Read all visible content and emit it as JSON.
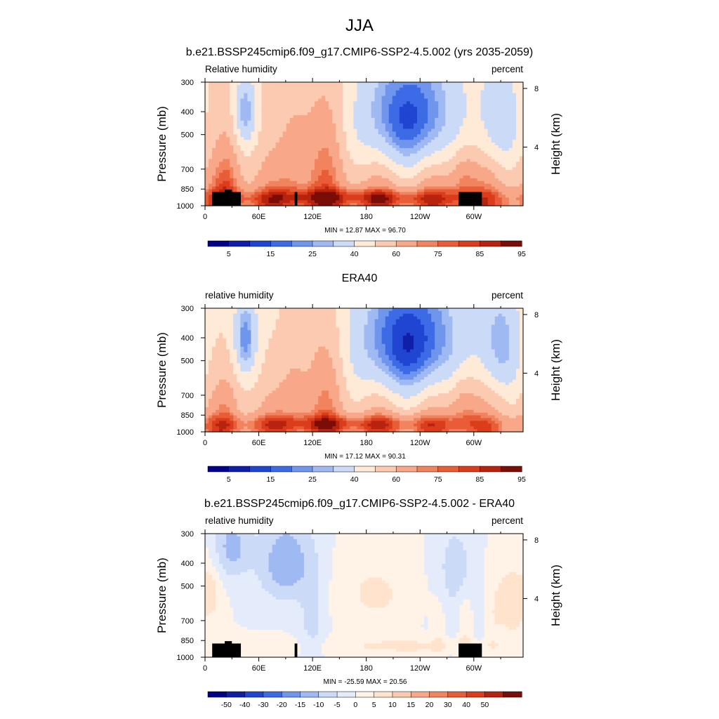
{
  "figure": {
    "title": "JJA"
  },
  "colors": {
    "rh_levels": [
      "#00008b",
      "#0f1fa8",
      "#1f45d1",
      "#3d6be6",
      "#6f95ec",
      "#9fb9f2",
      "#cbdbf7",
      "#ffe9d7",
      "#fbcab0",
      "#f8a889",
      "#f1845f",
      "#e85d38",
      "#da3c1c",
      "#b8230f",
      "#7a0d05"
    ],
    "diff_levels": [
      "#00008b",
      "#0f1fa8",
      "#1f45d1",
      "#3d6be6",
      "#6f95ec",
      "#9fb9f2",
      "#cbdbf7",
      "#e4ecfb",
      "#fff2e6",
      "#ffe3cc",
      "#fbcab0",
      "#f8a889",
      "#f1845f",
      "#e85d38",
      "#da3c1c",
      "#b8230f",
      "#7a0d05"
    ],
    "terrain": "#000000"
  },
  "chart_data": [
    {
      "type": "heatmap",
      "title": "b.e21.BSSP245cmip6.f09_g17.CMIP6-SSP2-4.5.002 (yrs 2035-2059)",
      "left_label": "Relative humidity",
      "right_label": "percent",
      "ylabel": "Pressure (mb)",
      "y2label": "Height (km)",
      "xticks": [
        "0",
        "60E",
        "120E",
        "180",
        "120W",
        "60W"
      ],
      "xtick_values": [
        0,
        60,
        120,
        180,
        240,
        300
      ],
      "xlim": [
        0,
        355
      ],
      "yticks": [
        "300",
        "400",
        "500",
        "700",
        "850",
        "1000"
      ],
      "ytick_values": [
        300,
        400,
        500,
        700,
        850,
        1000
      ],
      "ylim": [
        300,
        1000
      ],
      "y2ticks": [
        "8",
        "4"
      ],
      "y2tick_values": [
        8,
        4
      ],
      "y_scale": "log",
      "stats": "MIN =  12.87  MAX =  96.70",
      "colorbar_labels": [
        "5",
        "15",
        "25",
        "40",
        "60",
        "75",
        "85",
        "95"
      ],
      "colorbar_label_bounds": [
        1,
        3,
        5,
        7,
        9,
        11,
        13,
        15
      ],
      "levels": [
        0,
        5,
        10,
        15,
        20,
        25,
        30,
        40,
        50,
        60,
        70,
        75,
        80,
        85,
        90,
        95,
        100
      ],
      "terrain": true
    },
    {
      "type": "heatmap",
      "title": "ERA40",
      "left_label": "relative humidity",
      "right_label": "percent",
      "ylabel": "Pressure (mb)",
      "y2label": "Height (km)",
      "xticks": [
        "0",
        "60E",
        "120E",
        "180",
        "120W",
        "60W"
      ],
      "xtick_values": [
        0,
        60,
        120,
        180,
        240,
        300
      ],
      "xlim": [
        0,
        355
      ],
      "yticks": [
        "300",
        "400",
        "500",
        "700",
        "850",
        "1000"
      ],
      "ytick_values": [
        300,
        400,
        500,
        700,
        850,
        1000
      ],
      "ylim": [
        300,
        1000
      ],
      "y2ticks": [
        "8",
        "4"
      ],
      "y2tick_values": [
        8,
        4
      ],
      "y_scale": "log",
      "stats": "MIN =  17.12  MAX =  90.31",
      "colorbar_labels": [
        "5",
        "15",
        "25",
        "40",
        "60",
        "75",
        "85",
        "95"
      ],
      "colorbar_label_bounds": [
        1,
        3,
        5,
        7,
        9,
        11,
        13,
        15
      ],
      "levels": [
        0,
        5,
        10,
        15,
        20,
        25,
        30,
        40,
        50,
        60,
        70,
        75,
        80,
        85,
        90,
        95,
        100
      ],
      "terrain": false
    },
    {
      "type": "heatmap",
      "title": "b.e21.BSSP245cmip6.f09_g17.CMIP6-SSP2-4.5.002 - ERA40",
      "left_label": "relative humidity",
      "right_label": "percent",
      "ylabel": "Pressure (mb)",
      "y2label": "Height (km)",
      "xticks": [
        "0",
        "60E",
        "120E",
        "180",
        "120W",
        "60W"
      ],
      "xtick_values": [
        0,
        60,
        120,
        180,
        240,
        300
      ],
      "xlim": [
        0,
        355
      ],
      "yticks": [
        "300",
        "400",
        "500",
        "700",
        "850",
        "1000"
      ],
      "ytick_values": [
        300,
        400,
        500,
        700,
        850,
        1000
      ],
      "ylim": [
        300,
        1000
      ],
      "y2ticks": [
        "8",
        "4"
      ],
      "y2tick_values": [
        8,
        4
      ],
      "y_scale": "log",
      "stats": "MIN = -25.59  MAX =  20.56",
      "colorbar_labels": [
        "-50",
        "-40",
        "-30",
        "-20",
        "-15",
        "-10",
        "-5",
        "0",
        "5",
        "10",
        "15",
        "20",
        "30",
        "40",
        "50"
      ],
      "colorbar_label_bounds": [
        1,
        2,
        3,
        4,
        5,
        6,
        7,
        8,
        9,
        10,
        11,
        12,
        13,
        14,
        15
      ],
      "levels": [
        -60,
        -50,
        -40,
        -30,
        -20,
        -15,
        -10,
        -5,
        0,
        5,
        10,
        15,
        20,
        30,
        40,
        50,
        60
      ],
      "terrain": true
    }
  ]
}
